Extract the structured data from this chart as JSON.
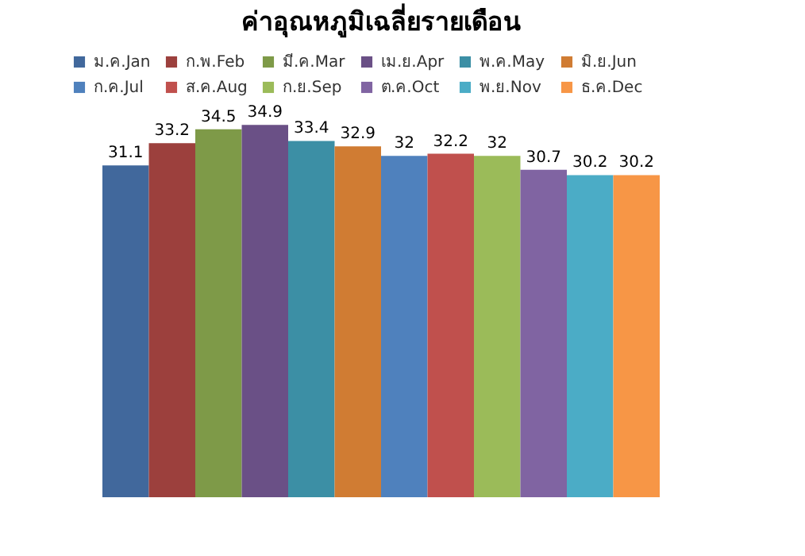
{
  "chart_data": {
    "type": "bar",
    "title": "ค่าอุณหภูมิเฉลี่ยรายเดือน",
    "categories": [
      null
    ],
    "data_labels": true,
    "legend": "top",
    "tick_labels": false,
    "series": [
      {
        "name": "ม.ค.Jan",
        "color": "#41689c",
        "values": [
          31.1
        ]
      },
      {
        "name": "ก.พ.Feb",
        "color": "#9c403d",
        "values": [
          33.2
        ]
      },
      {
        "name": "มี.ค.Mar",
        "color": "#7e9a48",
        "values": [
          34.5
        ]
      },
      {
        "name": "เม.ย.Apr",
        "color": "#6a5086",
        "values": [
          34.9
        ]
      },
      {
        "name": "พ.ค.May",
        "color": "#3c8fa5",
        "values": [
          33.4
        ]
      },
      {
        "name": "มิ.ย.Jun",
        "color": "#d07c33",
        "values": [
          32.9
        ]
      },
      {
        "name": "ก.ค.Jul",
        "color": "#4f81bd",
        "values": [
          32
        ]
      },
      {
        "name": "ส.ค.Aug",
        "color": "#c0504d",
        "values": [
          32.2
        ]
      },
      {
        "name": "ก.ย.Sep",
        "color": "#9bbb59",
        "values": [
          32
        ]
      },
      {
        "name": "ต.ค.Oct",
        "color": "#8064a2",
        "values": [
          30.7
        ]
      },
      {
        "name": "พ.ย.Nov",
        "color": "#4bacc6",
        "values": [
          30.2
        ]
      },
      {
        "name": "ธ.ค.Dec",
        "color": "#f79646",
        "values": [
          30.2
        ]
      }
    ]
  }
}
